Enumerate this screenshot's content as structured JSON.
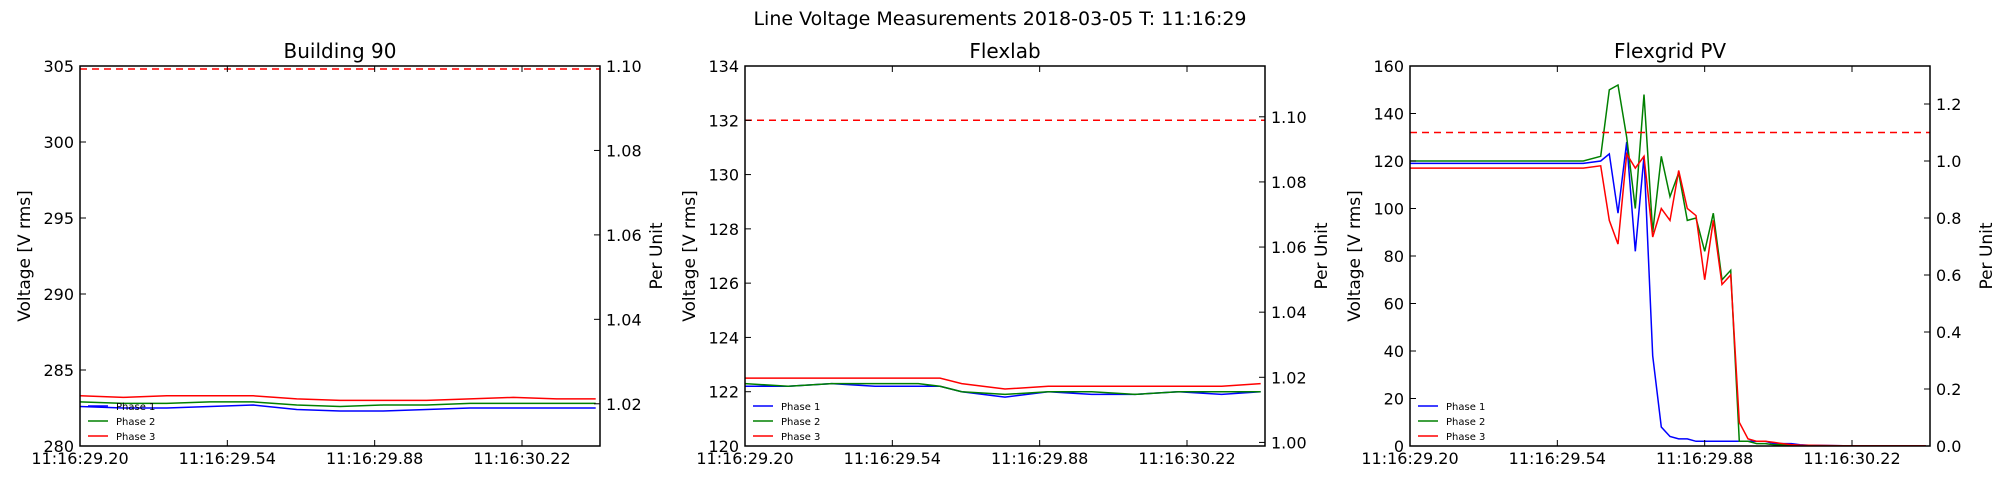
{
  "figure": {
    "suptitle": "Line Voltage Measurements 2018-03-05 T: 11:16:29"
  },
  "chart_data": [
    {
      "type": "line",
      "title": "Building 90",
      "ylabel": "Voltage [V rms]",
      "y2label": "Per Unit",
      "xlim": [
        29.2,
        30.4
      ],
      "ylim": [
        280,
        305
      ],
      "y2lim": [
        1.01,
        1.1
      ],
      "xticks": [
        "11:16:29.20",
        "11:16:29.54",
        "11:16:29.88",
        "11:16:30.22"
      ],
      "xtick_values": [
        29.2,
        29.54,
        29.88,
        30.22
      ],
      "yticks": [
        "280",
        "285",
        "290",
        "295",
        "300",
        "305"
      ],
      "ytick_values": [
        280,
        285,
        290,
        295,
        300,
        305
      ],
      "y2ticks": [
        "1.02",
        "1.04",
        "1.06",
        "1.08",
        "1.10"
      ],
      "y2tick_values": [
        1.02,
        1.04,
        1.06,
        1.08,
        1.1
      ],
      "reference_line": {
        "y": 304.8,
        "color": "#ff0000",
        "style": "dashed"
      },
      "legend": {
        "position": "bottom-left"
      },
      "x": [
        29.2,
        29.3,
        29.4,
        29.5,
        29.6,
        29.7,
        29.8,
        29.9,
        30.0,
        30.1,
        30.2,
        30.3,
        30.39
      ],
      "series": [
        {
          "name": "Phase 1",
          "color": "#0000ff",
          "values": [
            282.6,
            282.5,
            282.5,
            282.6,
            282.7,
            282.4,
            282.3,
            282.3,
            282.4,
            282.5,
            282.5,
            282.5,
            282.5
          ]
        },
        {
          "name": "Phase 2",
          "color": "#008000",
          "values": [
            282.9,
            282.8,
            282.8,
            282.9,
            282.9,
            282.7,
            282.6,
            282.7,
            282.7,
            282.8,
            282.8,
            282.8,
            282.8
          ]
        },
        {
          "name": "Phase 3",
          "color": "#ff0000",
          "values": [
            283.3,
            283.2,
            283.3,
            283.3,
            283.3,
            283.1,
            283.0,
            283.0,
            283.0,
            283.1,
            283.2,
            283.1,
            283.1
          ]
        }
      ]
    },
    {
      "type": "line",
      "title": "Flexlab",
      "ylabel": "Voltage [V rms]",
      "y2label": "Per Unit",
      "xlim": [
        29.2,
        30.4
      ],
      "ylim": [
        120,
        134
      ],
      "y2lim": [
        0.9989,
        1.1156
      ],
      "xticks": [
        "11:16:29.20",
        "11:16:29.54",
        "11:16:29.88",
        "11:16:30.22"
      ],
      "xtick_values": [
        29.2,
        29.54,
        29.88,
        30.22
      ],
      "yticks": [
        "120",
        "122",
        "124",
        "126",
        "128",
        "130",
        "132",
        "134"
      ],
      "ytick_values": [
        120,
        122,
        124,
        126,
        128,
        130,
        132,
        134
      ],
      "y2ticks": [
        "1.00",
        "1.02",
        "1.04",
        "1.06",
        "1.08",
        "1.10"
      ],
      "y2tick_values": [
        1.0,
        1.02,
        1.04,
        1.06,
        1.08,
        1.1
      ],
      "reference_line": {
        "y": 132.0,
        "color": "#ff0000",
        "style": "dashed"
      },
      "legend": {
        "position": "bottom-left"
      },
      "x": [
        29.2,
        29.3,
        29.4,
        29.5,
        29.6,
        29.65,
        29.7,
        29.8,
        29.9,
        30.0,
        30.1,
        30.2,
        30.3,
        30.39
      ],
      "series": [
        {
          "name": "Phase 1",
          "color": "#0000ff",
          "values": [
            122.2,
            122.2,
            122.3,
            122.2,
            122.2,
            122.2,
            122.0,
            121.8,
            122.0,
            121.9,
            121.9,
            122.0,
            121.9,
            122.0
          ]
        },
        {
          "name": "Phase 2",
          "color": "#008000",
          "values": [
            122.3,
            122.2,
            122.3,
            122.3,
            122.3,
            122.2,
            122.0,
            121.9,
            122.0,
            122.0,
            121.9,
            122.0,
            122.0,
            122.0
          ]
        },
        {
          "name": "Phase 3",
          "color": "#ff0000",
          "values": [
            122.5,
            122.5,
            122.5,
            122.5,
            122.5,
            122.5,
            122.3,
            122.1,
            122.2,
            122.2,
            122.2,
            122.2,
            122.2,
            122.3
          ]
        }
      ]
    },
    {
      "type": "line",
      "title": "Flexgrid PV",
      "ylabel": "Voltage [V rms]",
      "y2label": "Per Unit",
      "xlim": [
        29.2,
        30.4
      ],
      "ylim": [
        0,
        160
      ],
      "y2lim": [
        0,
        1.3333
      ],
      "xticks": [
        "11:16:29.20",
        "11:16:29.54",
        "11:16:29.88",
        "11:16:30.22"
      ],
      "xtick_values": [
        29.2,
        29.54,
        29.88,
        30.22
      ],
      "yticks": [
        "0",
        "20",
        "40",
        "60",
        "80",
        "100",
        "120",
        "140",
        "160"
      ],
      "ytick_values": [
        0,
        20,
        40,
        60,
        80,
        100,
        120,
        140,
        160
      ],
      "y2ticks": [
        "0.0",
        "0.2",
        "0.4",
        "0.6",
        "0.8",
        "1.0",
        "1.2"
      ],
      "y2tick_values": [
        0.0,
        0.2,
        0.4,
        0.6,
        0.8,
        1.0,
        1.2
      ],
      "reference_line": {
        "y": 132.0,
        "color": "#ff0000",
        "style": "dashed"
      },
      "legend": {
        "position": "bottom-left"
      },
      "x": [
        29.2,
        29.3,
        29.4,
        29.5,
        29.6,
        29.64,
        29.66,
        29.68,
        29.7,
        29.72,
        29.74,
        29.76,
        29.78,
        29.8,
        29.82,
        29.84,
        29.86,
        29.88,
        29.9,
        29.92,
        29.94,
        29.96,
        29.98,
        30.0,
        30.02,
        30.04,
        30.06,
        30.08,
        30.1,
        30.12,
        30.16,
        30.2,
        30.3,
        30.39
      ],
      "series": [
        {
          "name": "Phase 1",
          "color": "#0000ff",
          "values": [
            119,
            119,
            119,
            119,
            119,
            120,
            123,
            98,
            128,
            82,
            122,
            38,
            8,
            4,
            3,
            3,
            2,
            2,
            2,
            2,
            2,
            2,
            2,
            2,
            2,
            1,
            1,
            1,
            0.5,
            0.3,
            0.2,
            0.1,
            0.1,
            0.1
          ]
        },
        {
          "name": "Phase 2",
          "color": "#008000",
          "values": [
            120,
            120,
            120,
            120,
            120,
            122,
            150,
            152,
            130,
            100,
            148,
            90,
            122,
            105,
            115,
            95,
            96,
            82,
            98,
            70,
            74,
            2,
            2,
            1,
            1,
            0.5,
            0.5,
            0.3,
            0.2,
            0.1,
            0.1,
            0.1,
            0.1,
            0.1
          ]
        },
        {
          "name": "Phase 3",
          "color": "#ff0000",
          "values": [
            117,
            117,
            117,
            117,
            117,
            118,
            95,
            85,
            123,
            117,
            122,
            88,
            100,
            95,
            116,
            100,
            97,
            70,
            95,
            68,
            72,
            10,
            3,
            2,
            2,
            1.5,
            1,
            0.6,
            0.4,
            0.3,
            0.2,
            0.1,
            0.1,
            0.1
          ]
        }
      ]
    }
  ]
}
